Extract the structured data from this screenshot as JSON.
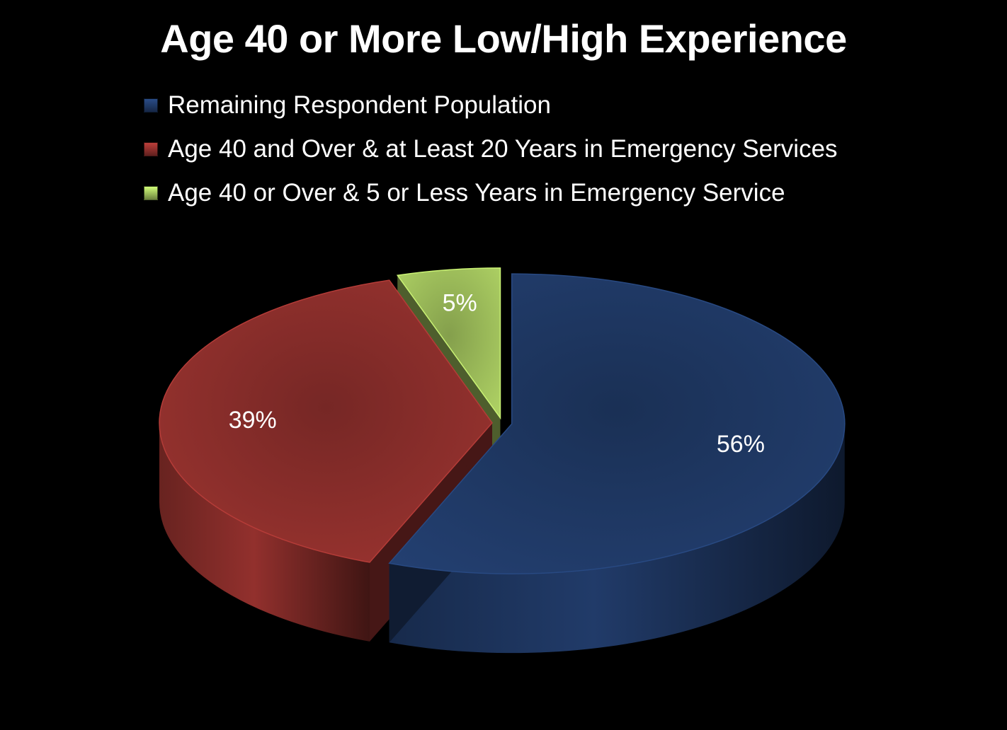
{
  "chart_data": {
    "type": "pie",
    "title": "Age 40 or More Low/High Experience",
    "legend_position": "top",
    "categories": [
      "Remaining Respondent Population",
      "Age 40 and Over & at Least 20 Years in Emergency Services",
      "Age 40 or Over & 5 or Less Years in Emergency Service"
    ],
    "values": [
      56,
      39,
      5
    ],
    "data_labels": [
      "56%",
      "39%",
      "5%"
    ],
    "colors": [
      "#1F3864",
      "#8B2E2B",
      "#9BBB59"
    ],
    "style": "3d exploded pie"
  }
}
